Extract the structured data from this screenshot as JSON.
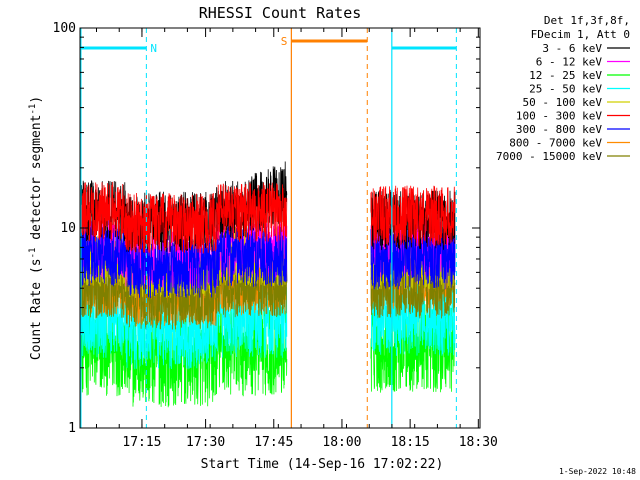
{
  "chart_data": {
    "type": "line",
    "title": "RHESSI Count Rates",
    "xlabel": "Start Time (14-Sep-16 17:02:22)",
    "ylabel_main": "Count Rate (s",
    "ylabel_sup1": "-1",
    "ylabel_mid": " detector segment",
    "ylabel_sup2": "-1",
    "ylabel_end": ")",
    "y_scale": "log",
    "ylim": [
      1,
      100
    ],
    "xlim_minutes": [
      0,
      88
    ],
    "y_tick_labels": [
      {
        "value": 100,
        "label": "100"
      },
      {
        "value": 10,
        "label": "10"
      },
      {
        "value": 1,
        "label": "1"
      }
    ],
    "x_tick_labels": [
      {
        "minute": 13.63,
        "label": "17:15"
      },
      {
        "minute": 27.63,
        "label": "17:30"
      },
      {
        "minute": 42.63,
        "label": "17:45"
      },
      {
        "minute": 57.63,
        "label": "18:00"
      },
      {
        "minute": 72.63,
        "label": "18:15"
      },
      {
        "minute": 87.63,
        "label": "18:30"
      }
    ],
    "data_gaps_minutes": [
      [
        45.5,
        64.0
      ]
    ],
    "series": [
      {
        "name": "3 - 6 keV",
        "color": "#000000",
        "base_pre": 12.2,
        "base_post": 11.0
      },
      {
        "name": "6 - 12 keV",
        "color": "#ff00ff",
        "base_pre": 8.0,
        "base_post": 8.0
      },
      {
        "name": "12 - 25 keV",
        "color": "#00ff00",
        "base_pre": 2.5,
        "base_post": 2.6
      },
      {
        "name": "25 - 50 keV",
        "color": "#00ffff",
        "base_pre": 3.5,
        "base_post": 3.6
      },
      {
        "name": "50 - 100 keV",
        "color": "#d0d000",
        "base_pre": 7.2,
        "base_post": 7.0
      },
      {
        "name": "100 - 300 keV",
        "color": "#ff0000",
        "base_pre": 12.0,
        "base_post": 11.5
      },
      {
        "name": "300 - 800 keV",
        "color": "#0000ff",
        "base_pre": 7.2,
        "base_post": 7.0
      },
      {
        "name": "800 - 7000 keV",
        "color": "#ff8c00",
        "base_pre": 5.2,
        "base_post": 5.6
      },
      {
        "name": "7000 - 15000 keV",
        "color": "#808000",
        "base_pre": 5.0,
        "base_post": 5.0
      }
    ],
    "annotations": [
      {
        "text": "N",
        "color": "#00e5ff"
      },
      {
        "text": "S",
        "color": "#ff8000"
      }
    ],
    "legend_placement": "top-right",
    "legend_header": [
      "Det 1f,3f,8f,",
      "FDecim 1, Att 0"
    ],
    "footer_date": "1-Sep-2022 10:48"
  }
}
